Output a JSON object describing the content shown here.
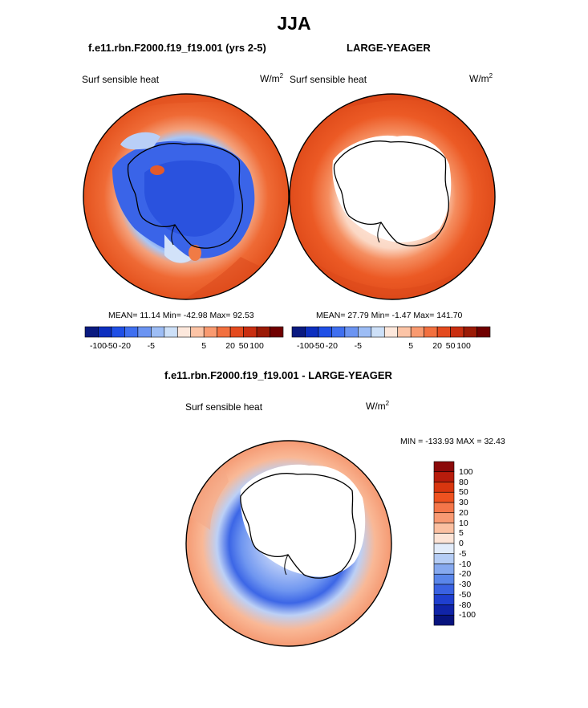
{
  "title": "JJA",
  "panels": {
    "top_left": {
      "case": "f.e11.rbn.F2000.f19_f19.001 (yrs 2-5)",
      "variable": "Surf sensible heat",
      "units_base": "W/m",
      "units_exp": "2",
      "stats": "MEAN=  11.14  Min= -42.98  Max=  92.53"
    },
    "top_right": {
      "case": "LARGE-YEAGER",
      "variable": "Surf sensible heat",
      "units_base": "W/m",
      "units_exp": "2",
      "stats": "MEAN=  27.79  Min=  -1.47  Max= 141.70"
    },
    "bottom": {
      "case": "f.e11.rbn.F2000.f19_f19.001 - LARGE-YEAGER",
      "variable": "Surf sensible heat",
      "units_base": "W/m",
      "units_exp": "2",
      "stats": "MIN = -133.93 MAX =  32.43"
    }
  },
  "horizontal_colorbar": {
    "tick_labels": [
      "-100",
      "-50",
      "-20",
      "-5",
      "5",
      "20",
      "50",
      "100"
    ],
    "colors": [
      "#0a1a80",
      "#0d2fbf",
      "#1f4fe6",
      "#3f6ff0",
      "#6b94f2",
      "#9dbdf5",
      "#cde0f8",
      "#fde8dc",
      "#fcc4a6",
      "#f99a70",
      "#f2703f",
      "#e44a1e",
      "#c92e10",
      "#9b1a05",
      "#700000"
    ]
  },
  "vertical_colorbar": {
    "tick_labels": [
      "100",
      "80",
      "50",
      "30",
      "20",
      "10",
      "5",
      "0",
      "-5",
      "-10",
      "-20",
      "-30",
      "-50",
      "-80",
      "-100"
    ],
    "colors": [
      "#8b0a0a",
      "#b71c0c",
      "#d8360f",
      "#ee5220",
      "#f47649",
      "#f89a73",
      "#fbc0a1",
      "#fde4d6",
      "#e2ecfa",
      "#b5cdf5",
      "#86a9ef",
      "#5a86ea",
      "#3a62e2",
      "#1f3fcf",
      "#1024a8",
      "#07137e"
    ]
  },
  "colors": {
    "land": "#ffffff",
    "coast": "#000000",
    "ocean_warm": "#e8531f",
    "ocean_cool": "#3f6ff0"
  }
}
